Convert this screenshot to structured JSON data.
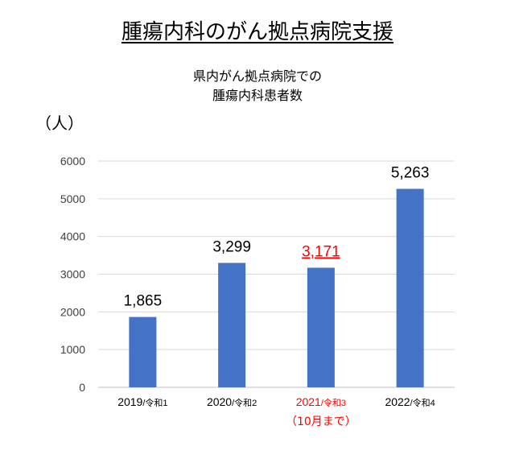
{
  "header": {
    "title": "腫瘍内科のがん拠点病院支援",
    "subtitle_line1": "県内がん拠点病院での",
    "subtitle_line2": "腫瘍内科患者数"
  },
  "chart_data": {
    "type": "bar",
    "unit_label": "（人）",
    "categories": [
      {
        "year": "2019",
        "era": "/令和1",
        "note": ""
      },
      {
        "year": "2020",
        "era": "/令和2",
        "note": ""
      },
      {
        "year": "2021",
        "era": "/令和3",
        "note": "（10月まで）"
      },
      {
        "year": "2022",
        "era": "/令和4",
        "note": ""
      }
    ],
    "values": [
      1865,
      3299,
      3171,
      5263
    ],
    "value_labels": [
      "1,865",
      "3,299",
      "3,171",
      "5,263"
    ],
    "highlight_index": 2,
    "ylim": [
      0,
      6000
    ],
    "yticks": [
      "0",
      "1000",
      "2000",
      "3000",
      "4000",
      "5000",
      "6000"
    ],
    "grid": true,
    "colors": {
      "bar": "#4472C4",
      "highlight_text": "#FF0000",
      "grid": "#D9D9D9",
      "axis_text": "#404040"
    }
  }
}
